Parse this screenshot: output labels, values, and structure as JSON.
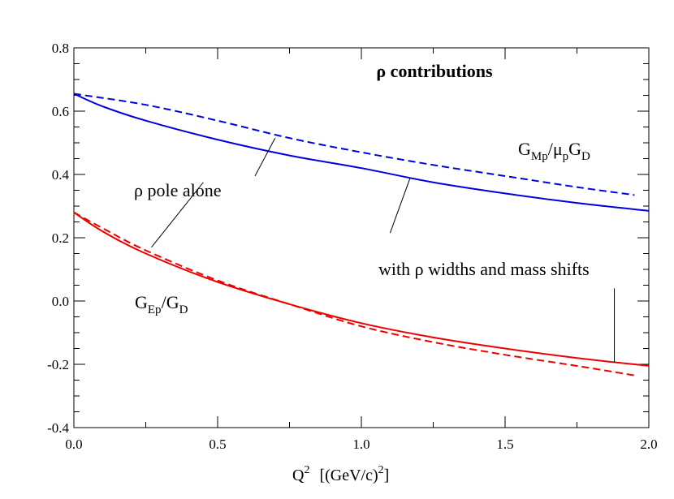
{
  "chart_data": {
    "type": "line",
    "title": "ρ contributions",
    "xlabel": "Q² [(GeV/c)²]",
    "xlabel_parts": {
      "q": "Q",
      "q_sup": "2",
      "unit_open": "[(GeV/c)",
      "unit_sup": "2",
      "unit_close": "]"
    },
    "ylabel": "",
    "xlim": [
      0.0,
      2.0
    ],
    "ylim": [
      -0.4,
      0.8
    ],
    "xticks": [
      "0.0",
      "0.5",
      "1.0",
      "1.5",
      "2.0"
    ],
    "xtick_values": [
      0.0,
      0.5,
      1.0,
      1.5,
      2.0
    ],
    "xminor_step": 0.25,
    "yticks": [
      "-0.4",
      "-0.2",
      "0.0",
      "0.2",
      "0.4",
      "0.6",
      "0.8"
    ],
    "ytick_values": [
      -0.4,
      -0.2,
      0.0,
      0.2,
      0.4,
      0.6,
      0.8
    ],
    "yminor_step": 0.05,
    "grid": false,
    "legend": "none",
    "labels": {
      "gmp": {
        "g": "G",
        "g_sub": "Mp",
        "slash": "/",
        "mu": "μ",
        "mu_sub": "p",
        "g2": "G",
        "g2_sub": "D"
      },
      "gep": {
        "g": "G",
        "g_sub": "Ep",
        "slash": "/",
        "g2": "G",
        "g2_sub": "D"
      },
      "pole": "ρ pole alone",
      "widths": "with ρ widths and mass shifts"
    },
    "series": [
      {
        "id": "gmp_full",
        "color": "#0000dd",
        "dash": "solid",
        "x": [
          0.0,
          0.1,
          0.25,
          0.5,
          0.75,
          1.0,
          1.25,
          1.5,
          1.75,
          2.0
        ],
        "y": [
          0.655,
          0.615,
          0.57,
          0.51,
          0.46,
          0.42,
          0.375,
          0.34,
          0.31,
          0.285
        ]
      },
      {
        "id": "gmp_pole",
        "color": "#0000dd",
        "dash": "dashed",
        "x": [
          0.0,
          0.25,
          0.5,
          0.75,
          1.0,
          1.25,
          1.5,
          1.75,
          1.95
        ],
        "y": [
          0.655,
          0.62,
          0.57,
          0.515,
          0.47,
          0.43,
          0.395,
          0.36,
          0.335
        ]
      },
      {
        "id": "gep_full",
        "color": "#ee0000",
        "dash": "solid",
        "x": [
          0.0,
          0.1,
          0.25,
          0.5,
          0.75,
          1.0,
          1.25,
          1.5,
          1.75,
          2.0
        ],
        "y": [
          0.28,
          0.22,
          0.15,
          0.06,
          -0.01,
          -0.07,
          -0.115,
          -0.15,
          -0.18,
          -0.205
        ]
      },
      {
        "id": "gep_pole",
        "color": "#ee0000",
        "dash": "dashed",
        "x": [
          0.0,
          0.1,
          0.25,
          0.5,
          0.75,
          1.0,
          1.25,
          1.5,
          1.75,
          1.95
        ],
        "y": [
          0.28,
          0.23,
          0.16,
          0.065,
          -0.01,
          -0.08,
          -0.13,
          -0.17,
          -0.205,
          -0.235
        ]
      }
    ],
    "pointers": [
      {
        "id": "pole-to-gmp",
        "from": [
          0.63,
          0.395
        ],
        "to": [
          0.7,
          0.515
        ]
      },
      {
        "id": "pole-to-gep",
        "from": [
          0.45,
          0.375
        ],
        "to": [
          0.27,
          0.17
        ]
      },
      {
        "id": "widths-to-gmp",
        "from": [
          1.1,
          0.215
        ],
        "to": [
          1.17,
          0.39
        ]
      },
      {
        "id": "widths-to-gep",
        "from": [
          1.88,
          0.04
        ],
        "to": [
          1.88,
          -0.195
        ]
      }
    ]
  }
}
